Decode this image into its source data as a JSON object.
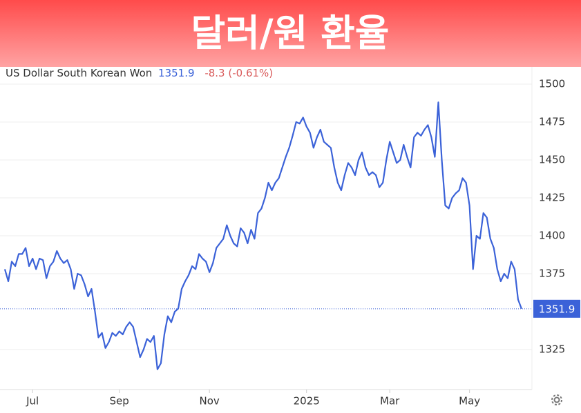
{
  "chart_data": {
    "type": "line",
    "title": "달러/원 환율",
    "instrument": "US Dollar South Korean Won",
    "price": "1351.9",
    "change": "-8.3 (-0.61%)",
    "series": [
      {
        "name": "US Dollar South Korean Won",
        "color": "#3b62d8",
        "values": [
          1378,
          1370,
          1383,
          1380,
          1388,
          1388,
          1392,
          1380,
          1385,
          1378,
          1385,
          1384,
          1372,
          1380,
          1383,
          1390,
          1385,
          1382,
          1384,
          1378,
          1365,
          1375,
          1374,
          1368,
          1360,
          1365,
          1350,
          1333,
          1336,
          1326,
          1330,
          1336,
          1334,
          1337,
          1335,
          1340,
          1343,
          1340,
          1330,
          1320,
          1325,
          1332,
          1330,
          1334,
          1312,
          1316,
          1335,
          1347,
          1343,
          1350,
          1352,
          1365,
          1370,
          1374,
          1380,
          1378,
          1388,
          1385,
          1383,
          1376,
          1382,
          1392,
          1395,
          1398,
          1407,
          1400,
          1395,
          1393,
          1405,
          1402,
          1395,
          1404,
          1398,
          1415,
          1418,
          1425,
          1435,
          1430,
          1435,
          1438,
          1445,
          1452,
          1458,
          1466,
          1475,
          1474,
          1478,
          1472,
          1468,
          1458,
          1465,
          1470,
          1462,
          1460,
          1458,
          1445,
          1435,
          1430,
          1440,
          1448,
          1445,
          1440,
          1450,
          1455,
          1445,
          1440,
          1442,
          1440,
          1432,
          1435,
          1450,
          1462,
          1455,
          1448,
          1450,
          1460,
          1452,
          1445,
          1465,
          1468,
          1466,
          1470,
          1473,
          1465,
          1452,
          1488,
          1450,
          1420,
          1418,
          1425,
          1428,
          1430,
          1438,
          1435,
          1420,
          1378,
          1400,
          1398,
          1415,
          1412,
          1398,
          1392,
          1378,
          1370,
          1375,
          1372,
          1383,
          1378,
          1358,
          1351.9
        ]
      }
    ],
    "xlim": [
      0,
      152
    ],
    "xticks": [
      {
        "value": 8,
        "label": "Jul"
      },
      {
        "value": 33,
        "label": "Sep"
      },
      {
        "value": 59,
        "label": "Nov"
      },
      {
        "value": 87,
        "label": "2025"
      },
      {
        "value": 111,
        "label": "Mar"
      },
      {
        "value": 134,
        "label": "May"
      }
    ],
    "ylim": [
      1300,
      1510
    ],
    "yticks": [
      1325,
      1375,
      1400,
      1425,
      1450,
      1475,
      1500
    ],
    "grid": true
  }
}
